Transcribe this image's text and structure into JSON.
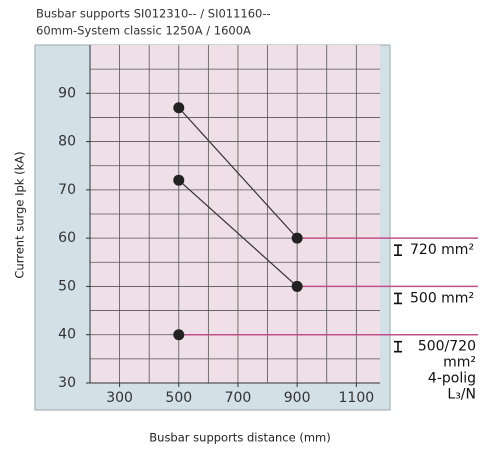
{
  "chart_data": {
    "type": "line",
    "title": "Busbar supports SI012310-- / SI011160--",
    "subtitle": "60mm-System classic 1250A / 1600A",
    "x_label": "Busbar supports distance (mm)",
    "y_label": "Current surge Ipk (kA)",
    "xlim": [
      200,
      1180
    ],
    "ylim": [
      30,
      100
    ],
    "xticks": [
      300,
      500,
      700,
      900,
      1100
    ],
    "yticks": [
      30,
      40,
      50,
      60,
      70,
      80,
      90
    ],
    "x_grid": [
      200,
      300,
      400,
      500,
      600,
      700,
      800,
      900,
      1000,
      1100
    ],
    "y_grid": [
      35,
      40,
      45,
      50,
      55,
      60,
      65,
      70,
      75,
      80,
      85,
      90,
      95
    ],
    "grid": true,
    "series": [
      {
        "color": "#222222",
        "x": [
          500,
          900
        ],
        "values": [
          87,
          60
        ]
      },
      {
        "color": "#222222",
        "x": [
          500,
          900
        ],
        "values": [
          72,
          50
        ]
      },
      {
        "color": "#222222",
        "x": [
          500
        ],
        "values": [
          40
        ]
      }
    ],
    "reference_color": "#c0508a",
    "annotations": [
      [
        "720 mm²"
      ],
      [
        "500 mm²"
      ],
      [
        "500/720",
        "mm²",
        "4-polig",
        "L₃/N"
      ]
    ]
  }
}
